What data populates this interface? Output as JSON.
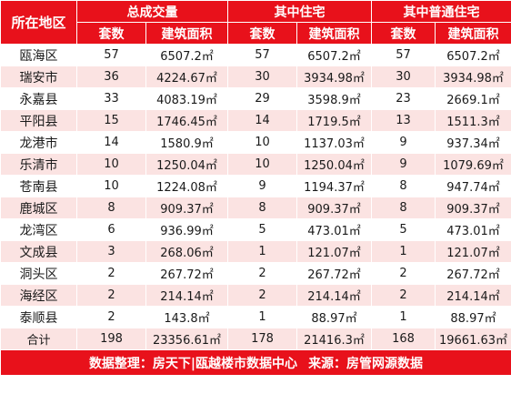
{
  "header": {
    "region": "所在地区",
    "groups": [
      "总成交量",
      "其中住宅",
      "其中普通住宅"
    ],
    "sub": [
      "套数",
      "建筑面积",
      "套数",
      "建筑面积",
      "套数",
      "建筑面积"
    ]
  },
  "rows": [
    {
      "name": "瓯海区",
      "c1": "57",
      "a1": "6507.2㎡",
      "c2": "57",
      "a2": "6507.2㎡",
      "c3": "57",
      "a3": "6507.2㎡"
    },
    {
      "name": "瑞安市",
      "c1": "36",
      "a1": "4224.67㎡",
      "c2": "30",
      "a2": "3934.98㎡",
      "c3": "30",
      "a3": "3934.98㎡"
    },
    {
      "name": "永嘉县",
      "c1": "33",
      "a1": "4083.19㎡",
      "c2": "29",
      "a2": "3598.9㎡",
      "c3": "23",
      "a3": "2669.1㎡"
    },
    {
      "name": "平阳县",
      "c1": "15",
      "a1": "1746.45㎡",
      "c2": "14",
      "a2": "1719.5㎡",
      "c3": "13",
      "a3": "1511.3㎡"
    },
    {
      "name": "龙港市",
      "c1": "14",
      "a1": "1580.9㎡",
      "c2": "10",
      "a2": "1137.03㎡",
      "c3": "9",
      "a3": "937.34㎡"
    },
    {
      "name": "乐清市",
      "c1": "10",
      "a1": "1250.04㎡",
      "c2": "10",
      "a2": "1250.04㎡",
      "c3": "9",
      "a3": "1079.69㎡"
    },
    {
      "name": "苍南县",
      "c1": "10",
      "a1": "1224.08㎡",
      "c2": "9",
      "a2": "1194.37㎡",
      "c3": "8",
      "a3": "947.74㎡"
    },
    {
      "name": "鹿城区",
      "c1": "8",
      "a1": "909.37㎡",
      "c2": "8",
      "a2": "909.37㎡",
      "c3": "8",
      "a3": "909.37㎡"
    },
    {
      "name": "龙湾区",
      "c1": "6",
      "a1": "936.99㎡",
      "c2": "5",
      "a2": "473.01㎡",
      "c3": "5",
      "a3": "473.01㎡"
    },
    {
      "name": "文成县",
      "c1": "3",
      "a1": "268.06㎡",
      "c2": "1",
      "a2": "121.07㎡",
      "c3": "1",
      "a3": "121.07㎡"
    },
    {
      "name": "洞头区",
      "c1": "2",
      "a1": "267.72㎡",
      "c2": "2",
      "a2": "267.72㎡",
      "c3": "2",
      "a3": "267.72㎡"
    },
    {
      "name": "海经区",
      "c1": "2",
      "a1": "214.14㎡",
      "c2": "2",
      "a2": "214.14㎡",
      "c3": "2",
      "a3": "214.14㎡"
    },
    {
      "name": "泰顺县",
      "c1": "2",
      "a1": "143.8㎡",
      "c2": "1",
      "a2": "88.97㎡",
      "c3": "1",
      "a3": "88.97㎡"
    }
  ],
  "total": {
    "name": "合计",
    "c1": "198",
    "a1": "23356.61㎡",
    "c2": "178",
    "a2": "21416.3㎡",
    "c3": "168",
    "a3": "19661.63㎡"
  },
  "footer": {
    "organizer": "数据整理：房天下|瓯越楼市数据中心",
    "source": "来源：房管网源数据"
  },
  "colors": {
    "header": "#e8111b",
    "stripe": "#fbe3e2"
  }
}
